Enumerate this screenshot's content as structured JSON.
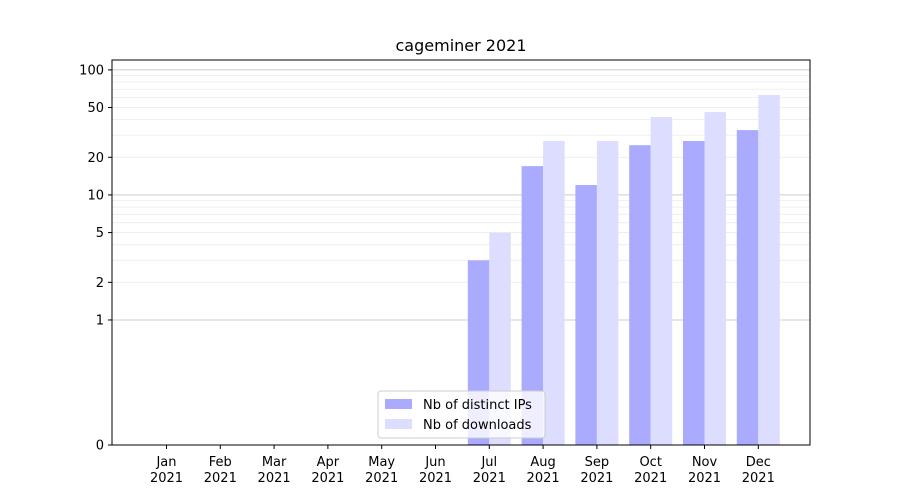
{
  "chart_data": {
    "type": "bar",
    "title": "cageminer 2021",
    "xlabel": "",
    "ylabel": "",
    "y_scale": "symlog",
    "ylim": [
      0,
      120
    ],
    "y_ticks": [
      0,
      1,
      2,
      5,
      10,
      20,
      50,
      100
    ],
    "y_tick_labels": [
      "0",
      "1",
      "2",
      "5",
      "10",
      "20",
      "50",
      "100"
    ],
    "categories": [
      {
        "month": "Jan",
        "year": "2021"
      },
      {
        "month": "Feb",
        "year": "2021"
      },
      {
        "month": "Mar",
        "year": "2021"
      },
      {
        "month": "Apr",
        "year": "2021"
      },
      {
        "month": "May",
        "year": "2021"
      },
      {
        "month": "Jun",
        "year": "2021"
      },
      {
        "month": "Jul",
        "year": "2021"
      },
      {
        "month": "Aug",
        "year": "2021"
      },
      {
        "month": "Sep",
        "year": "2021"
      },
      {
        "month": "Oct",
        "year": "2021"
      },
      {
        "month": "Nov",
        "year": "2021"
      },
      {
        "month": "Dec",
        "year": "2021"
      }
    ],
    "series": [
      {
        "name": "Nb of distinct IPs",
        "color": "#aaaaff",
        "values": [
          0,
          0,
          0,
          0,
          0,
          0,
          3,
          17,
          12,
          25,
          27,
          33
        ]
      },
      {
        "name": "Nb of downloads",
        "color": "#ddddff",
        "values": [
          0,
          0,
          0,
          0,
          0,
          0,
          5,
          27,
          27,
          42,
          46,
          63
        ]
      }
    ],
    "grid": true,
    "legend": "lower-center"
  }
}
